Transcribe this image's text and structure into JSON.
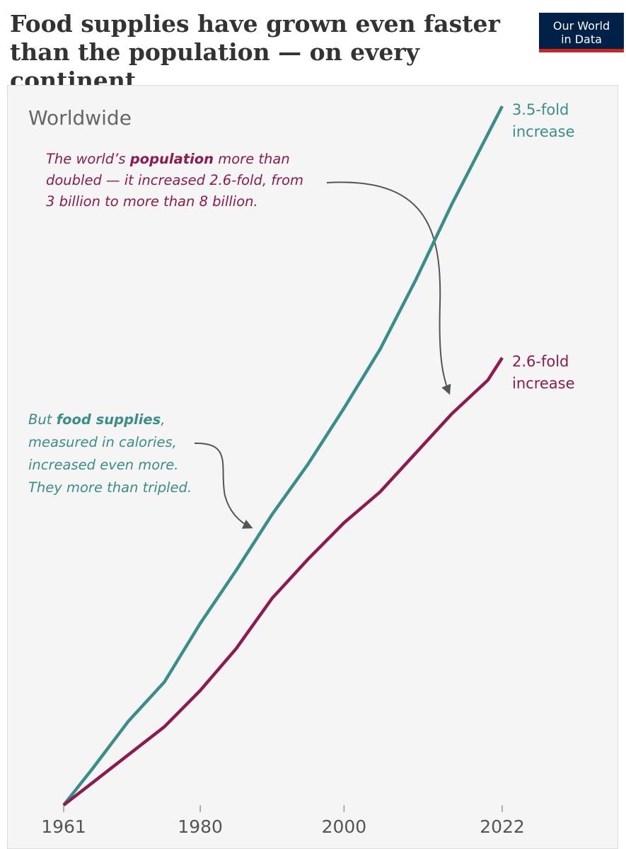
{
  "chart_data": {
    "type": "line",
    "title": "Food supplies have grown even faster than the population — on every continent",
    "logo": "Our World in Data",
    "subtitle": "Worldwide",
    "x": [
      1961,
      1965,
      1970,
      1975,
      1980,
      1985,
      1990,
      1995,
      2000,
      2005,
      2010,
      2015,
      2020,
      2022
    ],
    "xlim": [
      1961,
      2022
    ],
    "xticks": [
      1961,
      1980,
      2000,
      2022
    ],
    "ylim": [
      1,
      3.5
    ],
    "series": [
      {
        "name": "Food supplies",
        "color": "#3a8e89",
        "end_label": [
          "3.5-fold",
          "increase"
        ],
        "values": [
          1,
          1.13,
          1.3,
          1.44,
          1.65,
          1.84,
          2.04,
          2.22,
          2.42,
          2.63,
          2.88,
          3.15,
          3.4,
          3.5
        ]
      },
      {
        "name": "Population",
        "color": "#8e1b4f",
        "end_label": [
          "2.6-fold",
          "increase"
        ],
        "values": [
          1,
          1.08,
          1.18,
          1.28,
          1.41,
          1.56,
          1.74,
          1.88,
          2.01,
          2.12,
          2.26,
          2.4,
          2.52,
          2.6
        ]
      }
    ],
    "annotations": [
      {
        "color": "#8e1b4f",
        "lines": [
          [
            "The world’s ",
            "population",
            " more than"
          ],
          [
            "doubled — it increased 2.6-fold, from"
          ],
          [
            "3 billion to more than 8 billion."
          ]
        ]
      },
      {
        "color": "#3a8e89",
        "lines": [
          [
            "But ",
            "food supplies",
            ","
          ],
          [
            "measured in calories,"
          ],
          [
            "increased even more."
          ],
          [
            "They more than tripled."
          ]
        ]
      }
    ]
  }
}
